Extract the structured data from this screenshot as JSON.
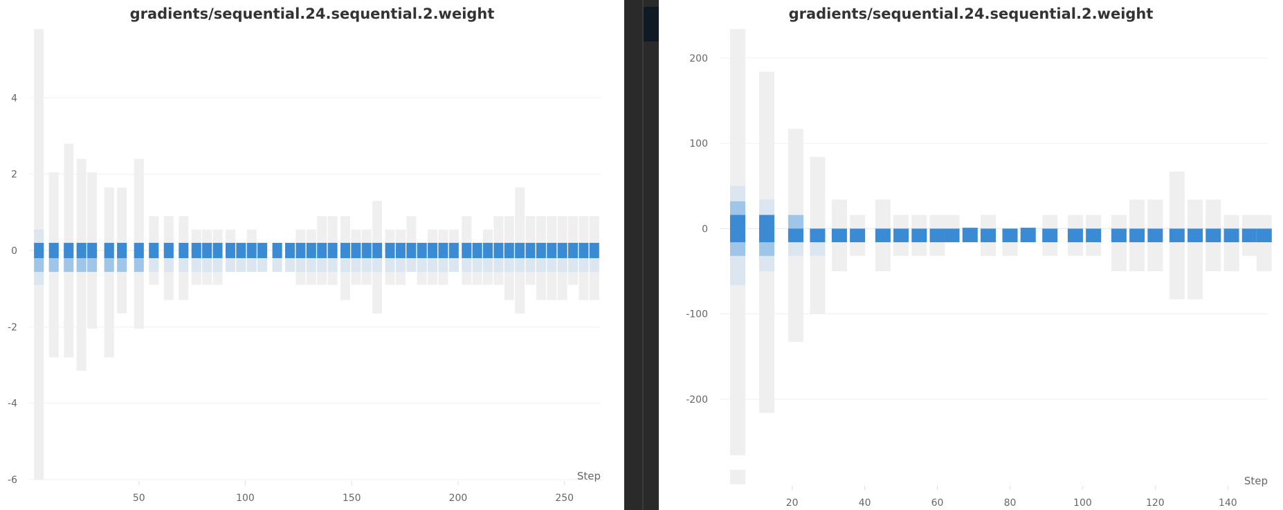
{
  "chart_data": [
    {
      "type": "heatmap",
      "title": "gradients/sequential.24.sequential.2.weight",
      "xlabel": "Step",
      "xlim": [
        0,
        267
      ],
      "ylim": [
        -6,
        5.8
      ],
      "xticks": [
        50,
        100,
        150,
        200,
        250
      ],
      "yticks": [
        4,
        2,
        0,
        -2,
        -4,
        -6
      ],
      "grid": true,
      "colors": {
        "background_bin": "#efefef",
        "light_bin": "#dbe6f1",
        "mid_bin": "#9fc5e8",
        "dark_bin": "#3a8ad4"
      },
      "bin_height": 0.375,
      "columns": [
        {
          "x": 3,
          "lo": -6.0,
          "hi": 5.8,
          "light": [
            -0.9,
            0.55
          ],
          "mid": [
            -0.56,
            0.2
          ],
          "dark": [
            -0.2,
            0.2
          ]
        },
        {
          "x": 10,
          "lo": -2.8,
          "hi": 2.05,
          "light": [
            -0.56,
            0.2
          ],
          "mid": [
            -0.56,
            0.2
          ],
          "dark": [
            -0.2,
            0.2
          ]
        },
        {
          "x": 17,
          "lo": -2.8,
          "hi": 2.8,
          "light": [
            -0.56,
            0.2
          ],
          "mid": [
            -0.56,
            0.2
          ],
          "dark": [
            -0.2,
            0.2
          ]
        },
        {
          "x": 23,
          "lo": -3.15,
          "hi": 2.4,
          "light": [
            -0.56,
            0.2
          ],
          "mid": [
            -0.56,
            0.2
          ],
          "dark": [
            -0.2,
            0.2
          ]
        },
        {
          "x": 28,
          "lo": -2.05,
          "hi": 2.05,
          "light": [
            -0.56,
            0.2
          ],
          "mid": [
            -0.56,
            0.2
          ],
          "dark": [
            -0.2,
            0.2
          ]
        },
        {
          "x": 36,
          "lo": -2.8,
          "hi": 1.65,
          "light": [
            -0.56,
            0.2
          ],
          "mid": [
            -0.56,
            0.2
          ],
          "dark": [
            -0.2,
            0.2
          ]
        },
        {
          "x": 42,
          "lo": -1.65,
          "hi": 1.65,
          "light": [
            -0.56,
            0.2
          ],
          "mid": [
            -0.56,
            0.2
          ],
          "dark": [
            -0.2,
            0.2
          ]
        },
        {
          "x": 50,
          "lo": -2.05,
          "hi": 2.4,
          "light": [
            -0.56,
            0.2
          ],
          "mid": [
            -0.56,
            0.2
          ],
          "dark": [
            -0.2,
            0.2
          ]
        },
        {
          "x": 57,
          "lo": -0.9,
          "hi": 0.9,
          "light": [
            -0.56,
            0.2
          ],
          "mid": [
            -0.2,
            0.2
          ],
          "dark": [
            -0.2,
            0.2
          ]
        },
        {
          "x": 64,
          "lo": -1.3,
          "hi": 0.9,
          "light": [
            -0.56,
            0.2
          ],
          "mid": [
            -0.2,
            0.2
          ],
          "dark": [
            -0.2,
            0.2
          ]
        },
        {
          "x": 71,
          "lo": -1.3,
          "hi": 0.9,
          "light": [
            -0.56,
            0.2
          ],
          "dark": [
            -0.2,
            0.2
          ]
        },
        {
          "x": 77,
          "lo": -0.9,
          "hi": 0.55,
          "light": [
            -0.56,
            0.2
          ],
          "dark": [
            -0.2,
            0.2
          ]
        },
        {
          "x": 82,
          "lo": -0.9,
          "hi": 0.55,
          "light": [
            -0.56,
            0.2
          ],
          "dark": [
            -0.2,
            0.2
          ]
        },
        {
          "x": 87,
          "lo": -0.9,
          "hi": 0.55,
          "light": [
            -0.56,
            0.2
          ],
          "dark": [
            -0.2,
            0.2
          ]
        },
        {
          "x": 93,
          "lo": -0.56,
          "hi": 0.55,
          "light": [
            -0.56,
            0.2
          ],
          "dark": [
            -0.2,
            0.2
          ]
        },
        {
          "x": 98,
          "lo": -0.56,
          "hi": 0.2,
          "light": [
            -0.56,
            0.2
          ],
          "dark": [
            -0.2,
            0.2
          ]
        },
        {
          "x": 103,
          "lo": -0.56,
          "hi": 0.55,
          "light": [
            -0.56,
            0.2
          ],
          "dark": [
            -0.2,
            0.2
          ]
        },
        {
          "x": 108,
          "lo": -0.56,
          "hi": 0.2,
          "light": [
            -0.56,
            0.2
          ],
          "dark": [
            -0.2,
            0.2
          ]
        },
        {
          "x": 115,
          "lo": -0.56,
          "hi": 0.2,
          "light": [
            -0.56,
            0.2
          ],
          "dark": [
            -0.2,
            0.2
          ]
        },
        {
          "x": 121,
          "lo": -0.56,
          "hi": 0.2,
          "light": [
            -0.56,
            0.2
          ],
          "dark": [
            -0.2,
            0.2
          ]
        },
        {
          "x": 126,
          "lo": -0.9,
          "hi": 0.55,
          "light": [
            -0.56,
            0.2
          ],
          "dark": [
            -0.2,
            0.2
          ]
        },
        {
          "x": 131,
          "lo": -0.9,
          "hi": 0.55,
          "light": [
            -0.56,
            0.2
          ],
          "dark": [
            -0.2,
            0.2
          ]
        },
        {
          "x": 136,
          "lo": -0.9,
          "hi": 0.9,
          "light": [
            -0.56,
            0.2
          ],
          "dark": [
            -0.2,
            0.2
          ]
        },
        {
          "x": 141,
          "lo": -0.9,
          "hi": 0.9,
          "light": [
            -0.56,
            0.2
          ],
          "dark": [
            -0.2,
            0.2
          ]
        },
        {
          "x": 147,
          "lo": -1.3,
          "hi": 0.9,
          "light": [
            -0.56,
            0.2
          ],
          "dark": [
            -0.2,
            0.2
          ]
        },
        {
          "x": 152,
          "lo": -0.9,
          "hi": 0.55,
          "light": [
            -0.56,
            0.2
          ],
          "dark": [
            -0.2,
            0.2
          ]
        },
        {
          "x": 157,
          "lo": -0.9,
          "hi": 0.55,
          "light": [
            -0.56,
            0.2
          ],
          "dark": [
            -0.2,
            0.2
          ]
        },
        {
          "x": 162,
          "lo": -1.65,
          "hi": 1.3,
          "light": [
            -0.56,
            0.2
          ],
          "dark": [
            -0.2,
            0.2
          ]
        },
        {
          "x": 168,
          "lo": -0.9,
          "hi": 0.55,
          "light": [
            -0.56,
            0.2
          ],
          "dark": [
            -0.2,
            0.2
          ]
        },
        {
          "x": 173,
          "lo": -0.9,
          "hi": 0.55,
          "light": [
            -0.56,
            0.2
          ],
          "dark": [
            -0.2,
            0.2
          ]
        },
        {
          "x": 178,
          "lo": -0.56,
          "hi": 0.9,
          "light": [
            -0.56,
            0.2
          ],
          "dark": [
            -0.2,
            0.2
          ]
        },
        {
          "x": 183,
          "lo": -0.9,
          "hi": 0.2,
          "light": [
            -0.56,
            0.2
          ],
          "dark": [
            -0.2,
            0.2
          ]
        },
        {
          "x": 188,
          "lo": -0.9,
          "hi": 0.55,
          "light": [
            -0.56,
            0.2
          ],
          "dark": [
            -0.2,
            0.2
          ]
        },
        {
          "x": 193,
          "lo": -0.9,
          "hi": 0.55,
          "light": [
            -0.56,
            0.2
          ],
          "dark": [
            -0.2,
            0.2
          ]
        },
        {
          "x": 198,
          "lo": -0.56,
          "hi": 0.55,
          "light": [
            -0.56,
            0.2
          ],
          "dark": [
            -0.2,
            0.2
          ]
        },
        {
          "x": 204,
          "lo": -0.9,
          "hi": 0.9,
          "light": [
            -0.56,
            0.2
          ],
          "dark": [
            -0.2,
            0.2
          ]
        },
        {
          "x": 209,
          "lo": -0.9,
          "hi": 0.2,
          "light": [
            -0.56,
            0.2
          ],
          "dark": [
            -0.2,
            0.2
          ]
        },
        {
          "x": 214,
          "lo": -0.9,
          "hi": 0.55,
          "light": [
            -0.56,
            0.2
          ],
          "dark": [
            -0.2,
            0.2
          ]
        },
        {
          "x": 219,
          "lo": -0.9,
          "hi": 0.9,
          "light": [
            -0.56,
            0.2
          ],
          "dark": [
            -0.2,
            0.2
          ]
        },
        {
          "x": 224,
          "lo": -1.3,
          "hi": 0.9,
          "light": [
            -0.56,
            0.2
          ],
          "dark": [
            -0.2,
            0.2
          ]
        },
        {
          "x": 229,
          "lo": -1.65,
          "hi": 1.65,
          "light": [
            -0.56,
            0.2
          ],
          "dark": [
            -0.2,
            0.2
          ]
        },
        {
          "x": 234,
          "lo": -0.9,
          "hi": 0.9,
          "light": [
            -0.56,
            0.2
          ],
          "dark": [
            -0.2,
            0.2
          ]
        },
        {
          "x": 239,
          "lo": -1.3,
          "hi": 0.9,
          "light": [
            -0.56,
            0.2
          ],
          "dark": [
            -0.2,
            0.2
          ]
        },
        {
          "x": 244,
          "lo": -1.3,
          "hi": 0.9,
          "light": [
            -0.56,
            0.2
          ],
          "dark": [
            -0.2,
            0.2
          ]
        },
        {
          "x": 249,
          "lo": -1.3,
          "hi": 0.9,
          "light": [
            -0.56,
            0.2
          ],
          "dark": [
            -0.2,
            0.2
          ]
        },
        {
          "x": 254,
          "lo": -0.9,
          "hi": 0.9,
          "light": [
            -0.56,
            0.2
          ],
          "dark": [
            -0.2,
            0.2
          ]
        },
        {
          "x": 259,
          "lo": -1.3,
          "hi": 0.9,
          "light": [
            -0.56,
            0.2
          ],
          "dark": [
            -0.2,
            0.2
          ]
        },
        {
          "x": 264,
          "lo": -1.3,
          "hi": 0.9,
          "light": [
            -0.56,
            0.2
          ],
          "dark": [
            -0.2,
            0.2
          ]
        }
      ]
    },
    {
      "type": "heatmap",
      "title": "gradients/sequential.24.sequential.2.weight",
      "xlabel": "Step",
      "xlim": [
        1,
        151
      ],
      "ylim": [
        -300,
        234
      ],
      "xticks": [
        20,
        40,
        60,
        80,
        100,
        120,
        140
      ],
      "yticks": [
        200,
        100,
        0,
        -100,
        -200
      ],
      "grid": true,
      "colors": {
        "background_bin": "#efefef",
        "light_bin": "#dbe6f1",
        "mid_bin": "#9fc5e8",
        "dark_bin": "#3a8ad4"
      },
      "bin_height": 16,
      "columns": [
        {
          "x": 5,
          "lo": -266,
          "hi": 234,
          "light": [
            -66,
            50
          ],
          "mid": [
            -32,
            32
          ],
          "dark": [
            -16,
            16
          ]
        },
        {
          "x": 5,
          "lo": -300,
          "hi": -283
        },
        {
          "x": 13,
          "lo": -216,
          "hi": 184,
          "light": [
            -50,
            34
          ],
          "mid": [
            -32,
            16
          ],
          "dark": [
            -16,
            16
          ]
        },
        {
          "x": 21,
          "lo": -133,
          "hi": 117,
          "light": [
            -32,
            16
          ],
          "mid": [
            -16,
            16
          ],
          "dark": [
            -16,
            0
          ]
        },
        {
          "x": 27,
          "lo": -100,
          "hi": 84,
          "light": [
            -32,
            0
          ],
          "dark": [
            -16,
            0
          ]
        },
        {
          "x": 33,
          "lo": -50,
          "hi": 34,
          "dark": [
            -16,
            0
          ]
        },
        {
          "x": 38,
          "lo": -32,
          "hi": 16,
          "dark": [
            -16,
            0
          ]
        },
        {
          "x": 45,
          "lo": -50,
          "hi": 34,
          "dark": [
            -16,
            0
          ]
        },
        {
          "x": 50,
          "lo": -32,
          "hi": 16,
          "dark": [
            -16,
            0
          ]
        },
        {
          "x": 55,
          "lo": -32,
          "hi": 16,
          "dark": [
            -16,
            0
          ]
        },
        {
          "x": 60,
          "lo": -32,
          "hi": 16,
          "dark": [
            -16,
            0
          ]
        },
        {
          "x": 64,
          "lo": -16,
          "hi": 16,
          "dark": [
            -16,
            0
          ]
        },
        {
          "x": 69,
          "lo": -16,
          "hi": 0,
          "dark": [
            -16,
            1
          ]
        },
        {
          "x": 74,
          "lo": -32,
          "hi": 16,
          "dark": [
            -16,
            0
          ]
        },
        {
          "x": 80,
          "lo": -32,
          "hi": 0,
          "dark": [
            -16,
            0
          ]
        },
        {
          "x": 85,
          "lo": -16,
          "hi": 0,
          "dark": [
            -16,
            1
          ]
        },
        {
          "x": 91,
          "lo": -32,
          "hi": 16,
          "dark": [
            -16,
            0
          ]
        },
        {
          "x": 98,
          "lo": -32,
          "hi": 16,
          "dark": [
            -16,
            0
          ]
        },
        {
          "x": 103,
          "lo": -32,
          "hi": 16,
          "dark": [
            -16,
            0
          ]
        },
        {
          "x": 110,
          "lo": -50,
          "hi": 16,
          "dark": [
            -16,
            0
          ]
        },
        {
          "x": 115,
          "lo": -50,
          "hi": 34,
          "dark": [
            -16,
            0
          ]
        },
        {
          "x": 120,
          "lo": -50,
          "hi": 34,
          "dark": [
            -16,
            0
          ]
        },
        {
          "x": 126,
          "lo": -83,
          "hi": 67,
          "dark": [
            -16,
            0
          ]
        },
        {
          "x": 131,
          "lo": -83,
          "hi": 34,
          "dark": [
            -16,
            0
          ]
        },
        {
          "x": 136,
          "lo": -50,
          "hi": 34,
          "dark": [
            -16,
            0
          ]
        },
        {
          "x": 141,
          "lo": -50,
          "hi": 16,
          "dark": [
            -16,
            0
          ]
        },
        {
          "x": 146,
          "lo": -32,
          "hi": 16,
          "dark": [
            -16,
            0
          ]
        },
        {
          "x": 150,
          "lo": -50,
          "hi": 16,
          "dark": [
            -16,
            0
          ]
        }
      ]
    }
  ]
}
